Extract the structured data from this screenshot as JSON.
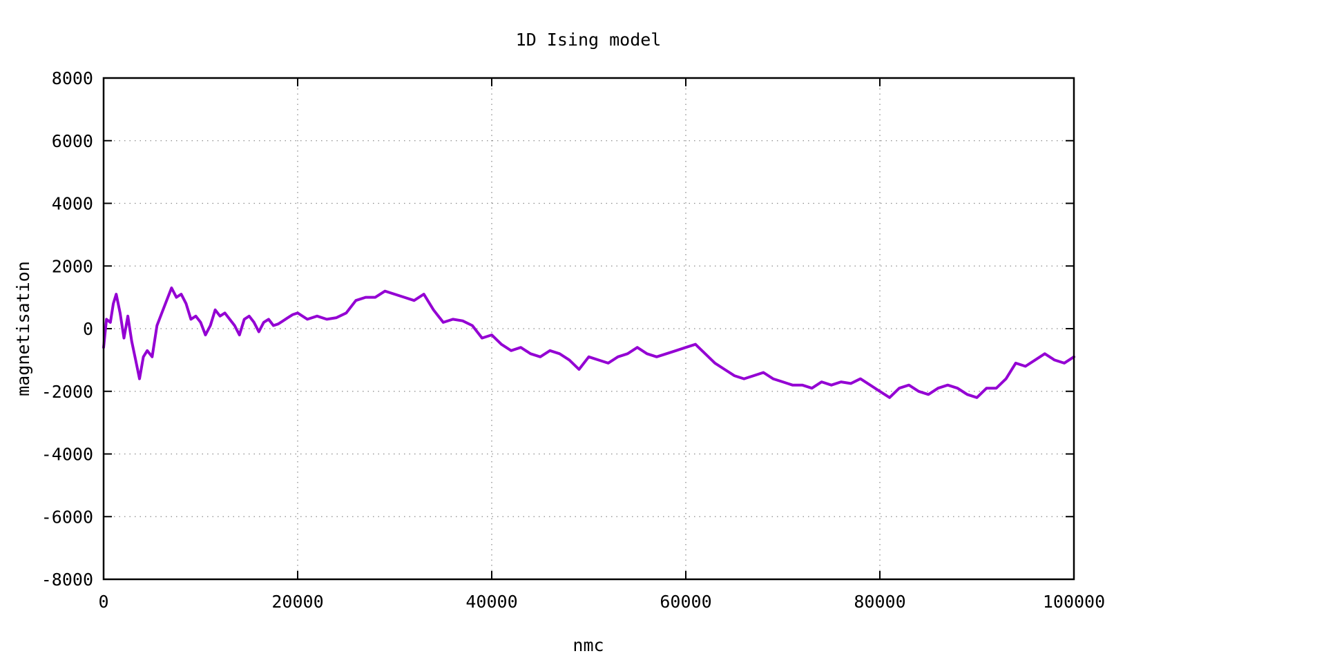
{
  "chart_data": {
    "type": "line",
    "title": "1D Ising model",
    "xlabel": "nmc",
    "ylabel": "magnetisation",
    "xlim": [
      0,
      100000
    ],
    "ylim": [
      -8000,
      8000
    ],
    "x_ticks": [
      0,
      20000,
      40000,
      60000,
      80000,
      100000
    ],
    "x_tick_labels": [
      "0",
      "20000",
      "40000",
      "60000",
      "80000",
      "100000"
    ],
    "y_ticks": [
      -8000,
      -6000,
      -4000,
      -2000,
      0,
      2000,
      4000,
      6000,
      8000
    ],
    "y_tick_labels": [
      "-8000",
      "-6000",
      "-4000",
      "-2000",
      "0",
      "2000",
      "4000",
      "6000",
      "8000"
    ],
    "grid": true,
    "line_color": "#9400d3",
    "series": [
      {
        "x": [
          0,
          300,
          700,
          1000,
          1300,
          1700,
          2100,
          2500,
          2900,
          3300,
          3700,
          4100,
          4500,
          5000,
          5500,
          6000,
          6500,
          7000,
          7500,
          8000,
          8500,
          9000,
          9500,
          10000,
          10500,
          11000,
          11500,
          12000,
          12500,
          13000,
          13500,
          14000,
          14500,
          15000,
          15500,
          16000,
          16500,
          17000,
          17500,
          18000,
          18500,
          19000,
          19500,
          20000,
          21000,
          22000,
          23000,
          24000,
          25000,
          26000,
          27000,
          28000,
          29000,
          30000,
          31000,
          32000,
          33000,
          34000,
          35000,
          36000,
          37000,
          38000,
          39000,
          40000,
          41000,
          42000,
          43000,
          44000,
          45000,
          46000,
          47000,
          48000,
          49000,
          50000,
          51000,
          52000,
          53000,
          54000,
          55000,
          56000,
          57000,
          58000,
          59000,
          60000,
          61000,
          62000,
          63000,
          64000,
          65000,
          66000,
          67000,
          68000,
          69000,
          70000,
          71000,
          72000,
          73000,
          74000,
          75000,
          76000,
          77000,
          78000,
          79000,
          80000,
          81000,
          82000,
          83000,
          84000,
          85000,
          86000,
          87000,
          88000,
          89000,
          90000,
          91000,
          92000,
          93000,
          94000,
          95000,
          96000,
          97000,
          98000,
          99000,
          100000
        ],
        "y": [
          -600,
          300,
          200,
          800,
          1100,
          500,
          -300,
          400,
          -400,
          -1000,
          -1600,
          -900,
          -700,
          -900,
          100,
          500,
          900,
          1300,
          1000,
          1100,
          800,
          300,
          400,
          200,
          -200,
          100,
          600,
          400,
          500,
          300,
          100,
          -200,
          300,
          400,
          200,
          -100,
          200,
          300,
          100,
          150,
          250,
          350,
          450,
          500,
          300,
          400,
          300,
          350,
          500,
          900,
          1000,
          1000,
          1200,
          1100,
          1000,
          900,
          1100,
          600,
          200,
          300,
          250,
          100,
          -300,
          -200,
          -500,
          -700,
          -600,
          -800,
          -900,
          -700,
          -800,
          -1000,
          -1300,
          -900,
          -1000,
          -1100,
          -900,
          -800,
          -600,
          -800,
          -900,
          -800,
          -700,
          -600,
          -500,
          -800,
          -1100,
          -1300,
          -1500,
          -1600,
          -1500,
          -1400,
          -1600,
          -1700,
          -1800,
          -1800,
          -1900,
          -1700,
          -1800,
          -1700,
          -1750,
          -1600,
          -1800,
          -2000,
          -2200,
          -1900,
          -1800,
          -2000,
          -2100,
          -1900,
          -1800,
          -1900,
          -2100,
          -2200,
          -1900,
          -1900,
          -1600,
          -1100,
          -1200,
          -1000,
          -800,
          -1000,
          -1100,
          -900
        ]
      }
    ]
  }
}
